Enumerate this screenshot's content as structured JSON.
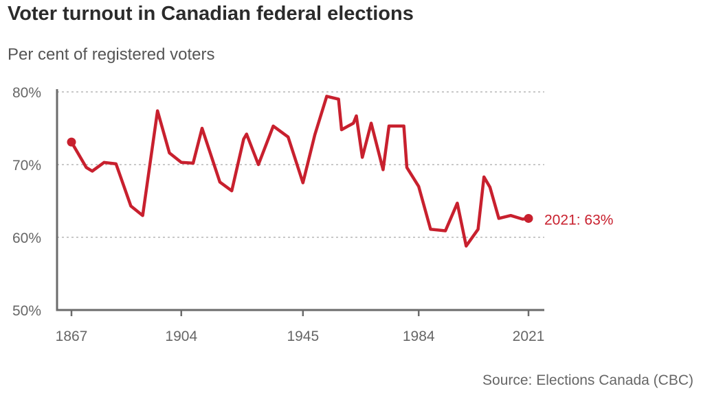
{
  "title": "Voter turnout in Canadian federal elections",
  "subtitle": "Per cent of registered voters",
  "source": "Source: Elections Canada (CBC)",
  "colors": {
    "line": "#c8202e",
    "axis": "#6b6b6b",
    "grid": "#b5b5b5",
    "text": "#666666"
  },
  "chart_data": {
    "type": "line",
    "title": "Voter turnout in Canadian federal elections",
    "subtitle": "Per cent of registered voters",
    "xlabel": "",
    "ylabel": "",
    "xlim": [
      1867,
      2021
    ],
    "ylim": [
      50,
      80
    ],
    "yticks": [
      50,
      60,
      70,
      80
    ],
    "ytick_labels": [
      "50%",
      "60%",
      "70%",
      "80%"
    ],
    "xticks": [
      1867,
      1904,
      1945,
      1984,
      2021
    ],
    "xtick_labels": [
      "1867",
      "1904",
      "1945",
      "1984",
      "2021"
    ],
    "grid": true,
    "series": [
      {
        "name": "Turnout",
        "x": [
          1867,
          1872,
          1874,
          1878,
          1882,
          1887,
          1891,
          1896,
          1900,
          1904,
          1908,
          1911,
          1917,
          1921,
          1925,
          1926,
          1930,
          1935,
          1940,
          1945,
          1949,
          1953,
          1957,
          1958,
          1962,
          1963,
          1965,
          1968,
          1972,
          1974,
          1979,
          1980,
          1984,
          1988,
          1993,
          1997,
          2000,
          2004,
          2006,
          2008,
          2011,
          2015,
          2019,
          2021
        ],
        "values": [
          73.1,
          69.6,
          69.1,
          70.3,
          70.1,
          64.3,
          63.0,
          77.4,
          71.6,
          70.3,
          70.2,
          75.0,
          67.6,
          66.4,
          73.5,
          74.2,
          70.0,
          75.3,
          73.8,
          67.5,
          74.1,
          79.4,
          79.0,
          74.8,
          75.7,
          76.7,
          71.0,
          75.7,
          69.3,
          75.3,
          75.3,
          69.6,
          67.0,
          61.1,
          60.9,
          64.7,
          58.8,
          61.1,
          68.3,
          66.9,
          62.6,
          63.0,
          62.5,
          62.6
        ]
      }
    ],
    "markers": [
      {
        "year": 1867,
        "value": 73.1
      },
      {
        "year": 2021,
        "value": 62.6
      }
    ],
    "end_label": "2021: 63%"
  }
}
